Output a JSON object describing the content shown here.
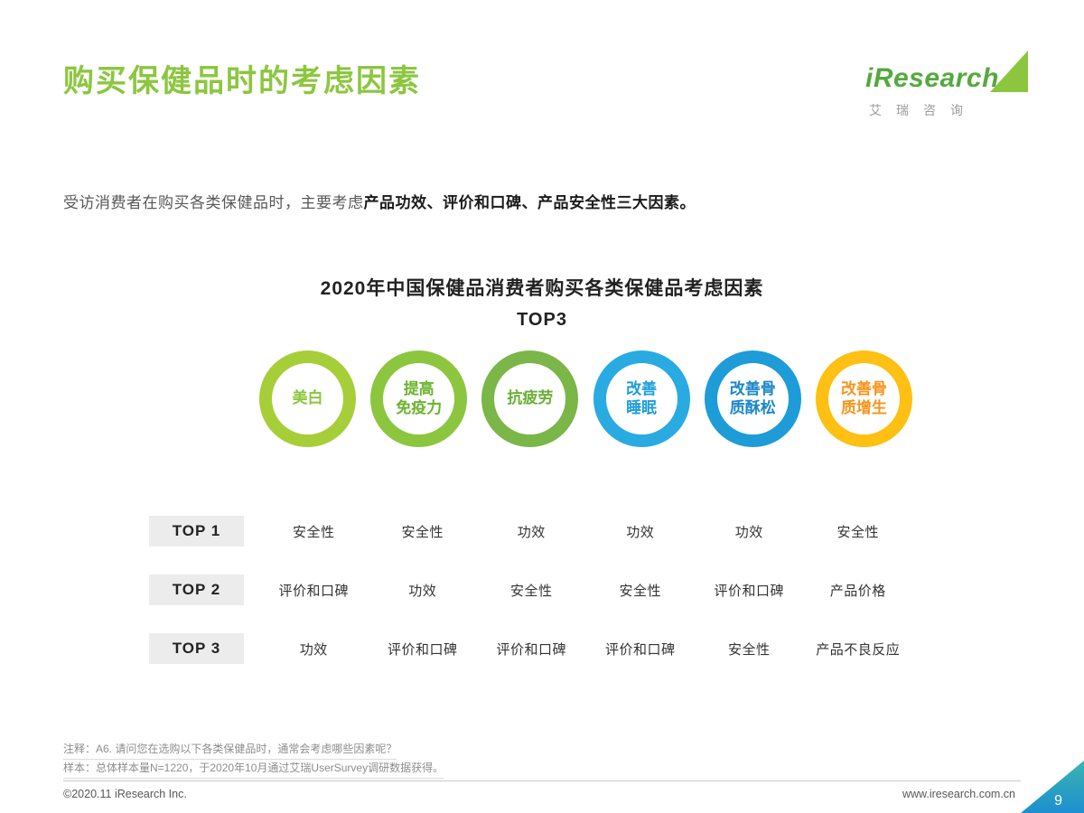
{
  "header": {
    "title": "购买保健品时的考虑因素"
  },
  "logo": {
    "wordmark": "iResearch",
    "chinese": "艾瑞咨询"
  },
  "intro": {
    "prefix": "受访消费者在购买各类保健品时，主要考虑",
    "bold": "产品功效、评价和口碑、产品安全性三大因素。"
  },
  "chart": {
    "title": "2020年中国保健品消费者购买各类保健品考虑因素",
    "subtitle": "TOP3",
    "categories": [
      {
        "label": "美白",
        "ring_color": "#a6ce39",
        "text_color": "#8cc63f"
      },
      {
        "label": "提高\n免疫力",
        "ring_color": "#8cc63f",
        "text_color": "#6ab42c"
      },
      {
        "label": "抗疲劳",
        "ring_color": "#7ab648",
        "text_color": "#69af34"
      },
      {
        "label": "改善\n睡眠",
        "ring_color": "#29abe2",
        "text_color": "#1c9ed9"
      },
      {
        "label": "改善骨\n质酥松",
        "ring_color": "#1e9cd7",
        "text_color": "#1b87c9"
      },
      {
        "label": "改善骨\n质增生",
        "ring_color": "#fdc013",
        "text_color": "#f7941d"
      }
    ],
    "rows": [
      {
        "label": "TOP 1",
        "values": [
          "安全性",
          "安全性",
          "功效",
          "功效",
          "功效",
          "安全性"
        ]
      },
      {
        "label": "TOP 2",
        "values": [
          "评价和口碑",
          "功效",
          "安全性",
          "安全性",
          "评价和口碑",
          "产品价格"
        ]
      },
      {
        "label": "TOP 3",
        "values": [
          "功效",
          "评价和口碑",
          "评价和口碑",
          "评价和口碑",
          "安全性",
          "产品不良反应"
        ]
      }
    ]
  },
  "chart_data": {
    "type": "table",
    "title": "2020年中国保健品消费者购买各类保健品考虑因素",
    "subtitle": "TOP3",
    "categories": [
      "美白",
      "提高免疫力",
      "抗疲劳",
      "改善睡眠",
      "改善骨质酥松",
      "改善骨质增生"
    ],
    "rows": [
      {
        "rank": "TOP 1",
        "values": [
          "安全性",
          "安全性",
          "功效",
          "功效",
          "功效",
          "安全性"
        ]
      },
      {
        "rank": "TOP 2",
        "values": [
          "评价和口碑",
          "功效",
          "安全性",
          "安全性",
          "评价和口碑",
          "产品价格"
        ]
      },
      {
        "rank": "TOP 3",
        "values": [
          "功效",
          "评价和口碑",
          "评价和口碑",
          "评价和口碑",
          "安全性",
          "产品不良反应"
        ]
      }
    ],
    "colors": {
      "accent_green": "#8cc63f",
      "ring_colors": [
        "#a6ce39",
        "#8cc63f",
        "#7ab648",
        "#29abe2",
        "#1e9cd7",
        "#fdc013"
      ],
      "corner_badge": "#1e8fd0"
    },
    "legend_position": "none",
    "grid": false
  },
  "footer": {
    "note1": "注释：A6. 请问您在选购以下各类保健品时，通常会考虑哪些因素呢？",
    "note2": "样本：总体样本量N=1220，于2020年10月通过艾瑞UserSurvey调研数据获得。",
    "copyright": "©2020.11 iResearch Inc.",
    "website": "www.iresearch.com.cn",
    "page_number": "9"
  }
}
